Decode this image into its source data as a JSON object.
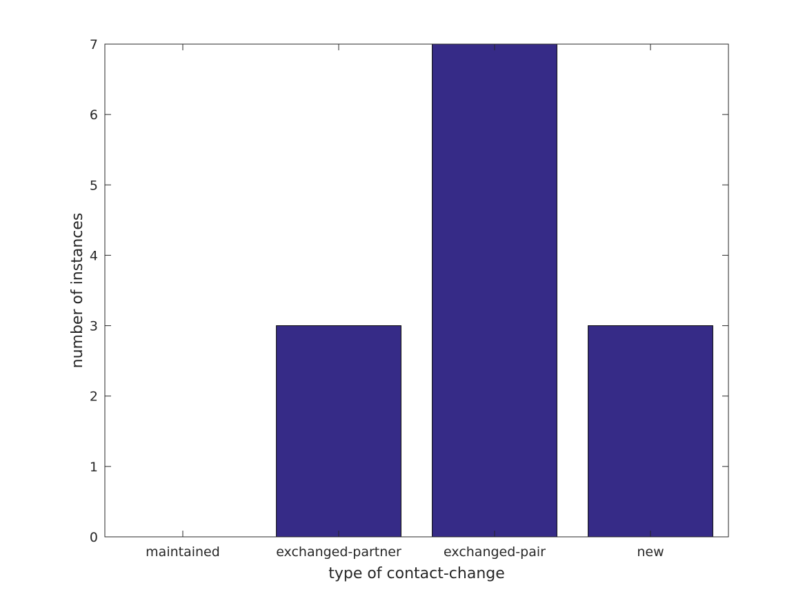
{
  "chart_data": {
    "type": "bar",
    "categories": [
      "maintained",
      "exchanged-partner",
      "exchanged-pair",
      "new"
    ],
    "values": [
      0,
      3,
      7,
      3
    ],
    "title": "",
    "xlabel": "type of contact-change",
    "ylabel": "number of instances",
    "ylim": [
      0,
      7
    ],
    "yticks": [
      "0",
      "1",
      "2",
      "3",
      "4",
      "5",
      "6",
      "7"
    ],
    "grid": false,
    "bar_color": "#362B87",
    "bar_edge_color": "#000000",
    "axis_color": "#262626"
  }
}
